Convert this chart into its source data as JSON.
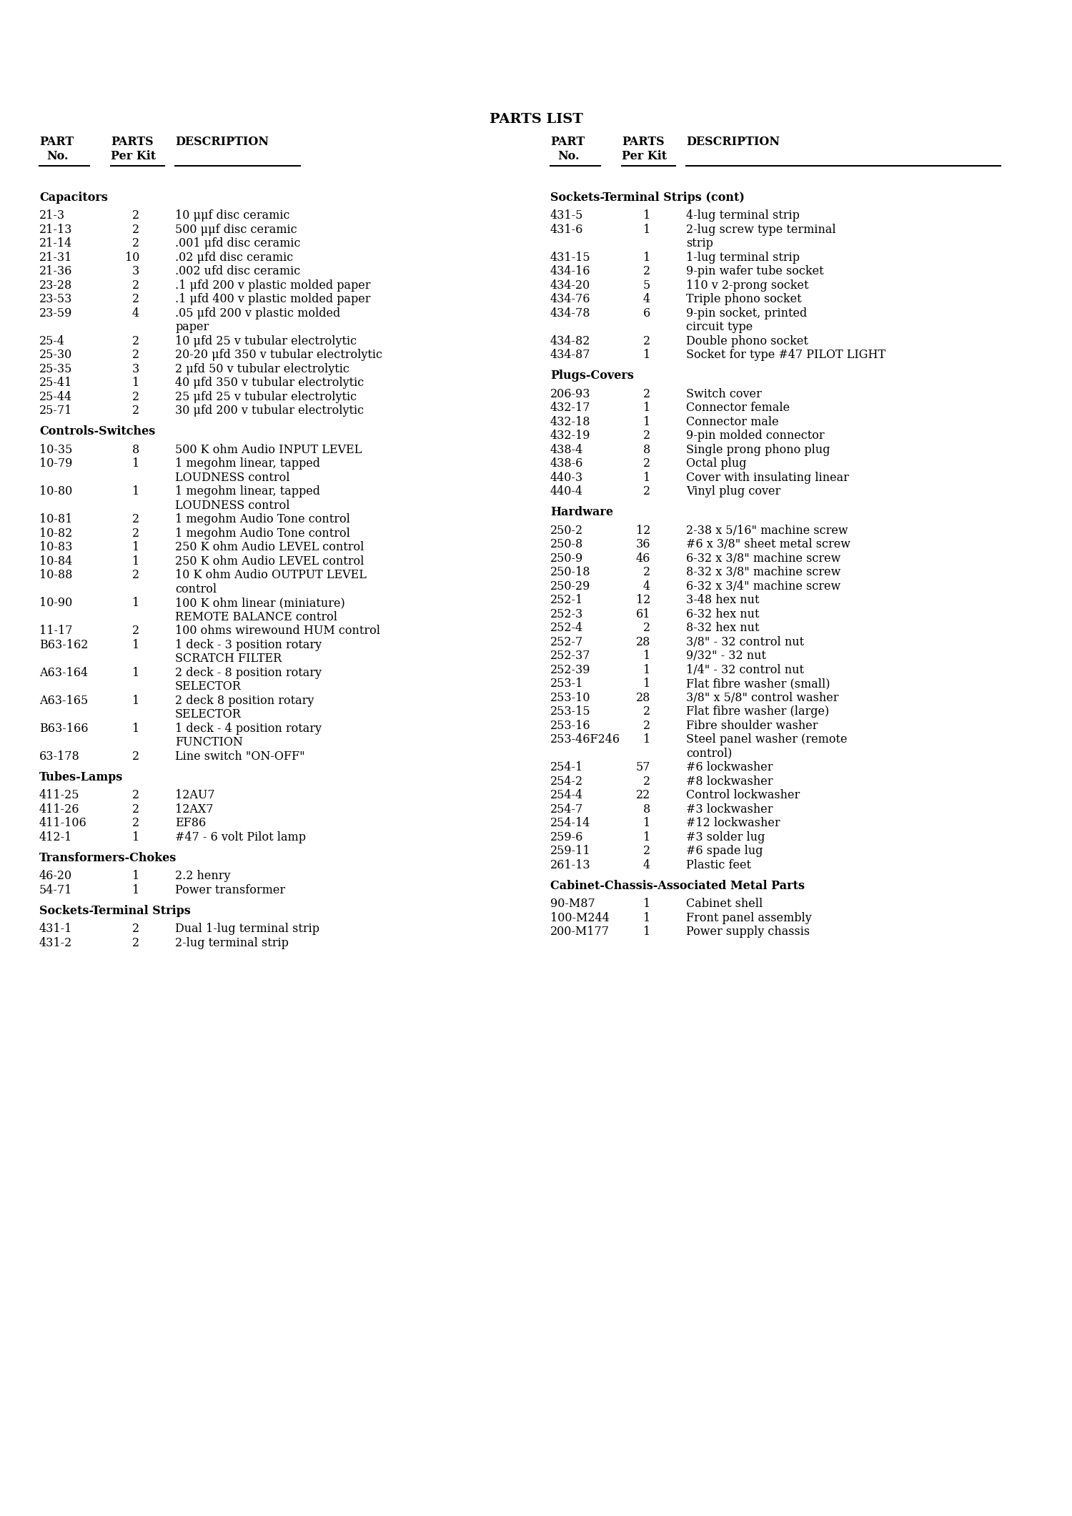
{
  "title": "PARTS LIST",
  "bg_color": "#ffffff",
  "text_color": "#000000",
  "title_fontsize": 14,
  "body_fontsize": 11.5,
  "section_fontsize": 11.5,
  "figwidth": 15.0,
  "figheight": 21.21,
  "dpi": 100,
  "left_col": [
    [
      "Capacitors",
      "",
      ""
    ],
    [
      "21-3",
      "2",
      "10 μμf disc ceramic"
    ],
    [
      "21-13",
      "2",
      "500 μμf disc ceramic"
    ],
    [
      "21-14",
      "2",
      ".001 μfd disc ceramic"
    ],
    [
      "21-31",
      "10",
      ".02 μfd disc ceramic"
    ],
    [
      "21-36",
      "3",
      ".002 ufd disc ceramic"
    ],
    [
      "23-28",
      "2",
      ".1 μfd 200 v plastic molded paper"
    ],
    [
      "23-53",
      "2",
      ".1 μfd 400 v plastic molded paper"
    ],
    [
      "23-59",
      "4",
      ".05 μfd 200 v plastic molded|paper"
    ],
    [
      "25-4",
      "2",
      "10 μfd 25 v tubular electrolytic"
    ],
    [
      "25-30",
      "2",
      "20-20 μfd 350 v tubular electrolytic"
    ],
    [
      "25-35",
      "3",
      "2 μfd 50 v tubular electrolytic"
    ],
    [
      "25-41",
      "1",
      "40 μfd 350 v tubular electrolytic"
    ],
    [
      "25-44",
      "2",
      "25 μfd 25 v tubular electrolytic"
    ],
    [
      "25-71",
      "2",
      "30 μfd 200 v tubular electrolytic"
    ],
    [
      "Controls-Switches",
      "",
      ""
    ],
    [
      "10-35",
      "8",
      "500 K ohm Audio INPUT LEVEL"
    ],
    [
      "10-79",
      "1",
      "1 megohm linear, tapped|LOUDNESS control"
    ],
    [
      "10-80",
      "1",
      "1 megohm linear, tapped|LOUDNESS control"
    ],
    [
      "10-81",
      "2",
      "1 megohm Audio Tone control"
    ],
    [
      "10-82",
      "2",
      "1 megohm Audio Tone control"
    ],
    [
      "10-83",
      "1",
      "250 K ohm Audio LEVEL control"
    ],
    [
      "10-84",
      "1",
      "250 K ohm Audio LEVEL control"
    ],
    [
      "10-88",
      "2",
      "10 K ohm Audio OUTPUT LEVEL|control"
    ],
    [
      "10-90",
      "1",
      "100 K ohm linear (miniature)|REMOTE BALANCE control"
    ],
    [
      "11-17",
      "2",
      "100 ohms wirewound HUM control"
    ],
    [
      "B63-162",
      "1",
      "1 deck - 3 position rotary|SCRATCH FILTER"
    ],
    [
      "A63-164",
      "1",
      "2 deck - 8 position rotary|SELECTOR"
    ],
    [
      "A63-165",
      "1",
      "2 deck 8 position rotary|SELECTOR"
    ],
    [
      "B63-166",
      "1",
      "1 deck - 4 position rotary|FUNCTION"
    ],
    [
      "63-178",
      "2",
      "Line switch \"ON-OFF\""
    ],
    [
      "Tubes-Lamps",
      "",
      ""
    ],
    [
      "411-25",
      "2",
      "12AU7"
    ],
    [
      "411-26",
      "2",
      "12AX7"
    ],
    [
      "411-106",
      "2",
      "EF86"
    ],
    [
      "412-1",
      "1",
      "#47 - 6 volt Pilot lamp"
    ],
    [
      "Transformers-Chokes",
      "",
      ""
    ],
    [
      "46-20",
      "1",
      "2.2 henry"
    ],
    [
      "54-71",
      "1",
      "Power transformer"
    ],
    [
      "Sockets-Terminal Strips",
      "",
      ""
    ],
    [
      "431-1",
      "2",
      "Dual 1-lug terminal strip"
    ],
    [
      "431-2",
      "2",
      "2-lug terminal strip"
    ]
  ],
  "right_col": [
    [
      "Sockets-Terminal Strips (cont)",
      "",
      ""
    ],
    [
      "431-5",
      "1",
      "4-lug terminal strip"
    ],
    [
      "431-6",
      "1",
      "2-lug screw type terminal|strip"
    ],
    [
      "431-15",
      "1",
      "1-lug terminal strip"
    ],
    [
      "434-16",
      "2",
      "9-pin wafer tube socket"
    ],
    [
      "434-20",
      "5",
      "110 v 2-prong socket"
    ],
    [
      "434-76",
      "4",
      "Triple phono socket"
    ],
    [
      "434-78",
      "6",
      "9-pin socket, printed|circuit type"
    ],
    [
      "434-82",
      "2",
      "Double phono socket"
    ],
    [
      "434-87",
      "1",
      "Socket for type #47 PILOT LIGHT"
    ],
    [
      "Plugs-Covers",
      "",
      ""
    ],
    [
      "206-93",
      "2",
      "Switch cover"
    ],
    [
      "432-17",
      "1",
      "Connector female"
    ],
    [
      "432-18",
      "1",
      "Connector male"
    ],
    [
      "432-19",
      "2",
      "9-pin molded connector"
    ],
    [
      "438-4",
      "8",
      "Single prong phono plug"
    ],
    [
      "438-6",
      "2",
      "Octal plug"
    ],
    [
      "440-3",
      "1",
      "Cover with insulating linear"
    ],
    [
      "440-4",
      "2",
      "Vinyl plug cover"
    ],
    [
      "Hardware",
      "",
      ""
    ],
    [
      "250-2",
      "12",
      "2-38 x 5/16\" machine screw"
    ],
    [
      "250-8",
      "36",
      "#6 x 3/8\" sheet metal screw"
    ],
    [
      "250-9",
      "46",
      "6-32 x 3/8\" machine screw"
    ],
    [
      "250-18",
      "2",
      "8-32 x 3/8\" machine screw"
    ],
    [
      "250-29",
      "4",
      "6-32 x 3/4\" machine screw"
    ],
    [
      "252-1",
      "12",
      "3-48 hex nut"
    ],
    [
      "252-3",
      "61",
      "6-32 hex nut"
    ],
    [
      "252-4",
      "2",
      "8-32 hex nut"
    ],
    [
      "252-7",
      "28",
      "3/8\" - 32 control nut"
    ],
    [
      "252-37",
      "1",
      "9/32\" - 32 nut"
    ],
    [
      "252-39",
      "1",
      "1/4\" - 32 control nut"
    ],
    [
      "253-1",
      "1",
      "Flat fibre washer (small)"
    ],
    [
      "253-10",
      "28",
      "3/8\" x 5/8\" control washer"
    ],
    [
      "253-15",
      "2",
      "Flat fibre washer (large)"
    ],
    [
      "253-16",
      "2",
      "Fibre shoulder washer"
    ],
    [
      "253-46F246",
      "1",
      "Steel panel washer (remote|control)"
    ],
    [
      "254-1",
      "57",
      "#6 lockwasher"
    ],
    [
      "254-2",
      "2",
      "#8 lockwasher"
    ],
    [
      "254-4",
      "22",
      "Control lockwasher"
    ],
    [
      "254-7",
      "8",
      "#3 lockwasher"
    ],
    [
      "254-14",
      "1",
      "#12 lockwasher"
    ],
    [
      "259-6",
      "1",
      "#3 solder lug"
    ],
    [
      "259-11",
      "2",
      "#6 spade lug"
    ],
    [
      "261-13",
      "4",
      "Plastic feet"
    ],
    [
      "Cabinet-Chassis-Associated Metal Parts",
      "",
      ""
    ],
    [
      "90-M87",
      "1",
      "Cabinet shell"
    ],
    [
      "100-M244",
      "1",
      "Front panel assembly"
    ],
    [
      "200-M177",
      "1",
      "Power supply chassis"
    ]
  ]
}
